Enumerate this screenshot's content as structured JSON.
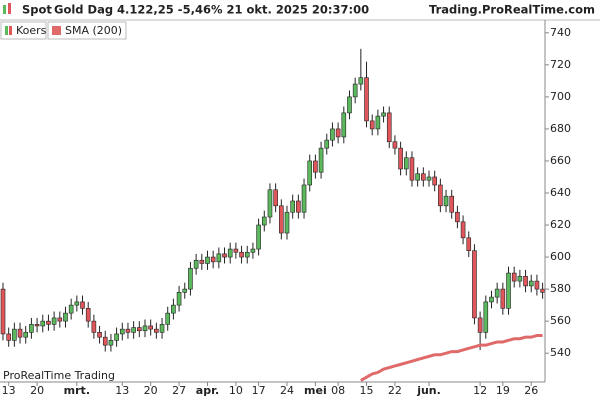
{
  "chart_data": {
    "type": "candlestick",
    "symbol": "Spot",
    "title": "Gold Dag 4.122,25 -5,46% 21 okt. 2025 20:37:00",
    "source": "Trading.ProRealTime.com",
    "watermark": "ProRealTime Trading",
    "categories": [
      null,
      "13",
      null,
      null,
      null,
      null,
      "20",
      null,
      null,
      null,
      null,
      null,
      null,
      "mrt.",
      null,
      null,
      null,
      null,
      null,
      null,
      null,
      "13",
      null,
      null,
      null,
      null,
      "20",
      null,
      null,
      null,
      null,
      "27",
      null,
      null,
      null,
      null,
      "apr.",
      null,
      null,
      null,
      null,
      "10",
      null,
      null,
      null,
      "17",
      null,
      null,
      null,
      null,
      "24",
      null,
      null,
      null,
      null,
      "mei",
      null,
      null,
      null,
      "08",
      null,
      null,
      null,
      null,
      "15",
      null,
      null,
      null,
      null,
      "22",
      null,
      null,
      null,
      null,
      null,
      "jun.",
      null,
      null,
      null,
      null,
      null,
      null,
      null,
      null,
      "12",
      null,
      null,
      null,
      "19",
      null,
      null,
      null,
      null,
      "26",
      null,
      null
    ],
    "series": [
      {
        "name": "Koers",
        "up_color": "#5cb85c",
        "down_color": "#e0575b",
        "open": [
          580,
          552,
          548,
          555,
          550,
          553,
          558,
          557,
          560,
          558,
          562,
          560,
          565,
          570,
          572,
          568,
          560,
          553,
          550,
          545,
          548,
          552,
          555,
          553,
          556,
          554,
          557,
          555,
          553,
          558,
          565,
          570,
          578,
          580,
          593,
          598,
          596,
          600,
          597,
          602,
          600,
          605,
          603,
          600,
          603,
          605,
          620,
          625,
          642,
          632,
          615,
          628,
          635,
          628,
          645,
          660,
          653,
          668,
          673,
          680,
          675,
          690,
          700,
          708,
          712,
          685,
          680,
          688,
          690,
          672,
          668,
          655,
          662,
          648,
          652,
          648,
          650,
          645,
          632,
          638,
          628,
          622,
          612,
          604,
          562,
          553,
          572,
          575,
          580,
          568,
          590,
          585,
          588,
          582,
          585,
          580
        ],
        "high": [
          584,
          556,
          559,
          559,
          557,
          562,
          562,
          564,
          564,
          566,
          566,
          569,
          574,
          576,
          576,
          572,
          564,
          557,
          554,
          552,
          556,
          559,
          559,
          560,
          560,
          561,
          561,
          559,
          562,
          569,
          574,
          582,
          584,
          597,
          602,
          602,
          604,
          604,
          606,
          606,
          609,
          609,
          607,
          607,
          609,
          624,
          629,
          646,
          646,
          636,
          632,
          639,
          639,
          649,
          664,
          664,
          672,
          677,
          684,
          684,
          694,
          704,
          712,
          730,
          722,
          689,
          692,
          694,
          694,
          676,
          672,
          666,
          666,
          656,
          656,
          654,
          654,
          649,
          642,
          642,
          632,
          626,
          616,
          608,
          566,
          576,
          579,
          584,
          584,
          594,
          594,
          592,
          592,
          589,
          589,
          584
        ],
        "low": [
          548,
          544,
          544,
          546,
          546,
          549,
          553,
          553,
          554,
          554,
          556,
          556,
          561,
          566,
          564,
          556,
          549,
          546,
          541,
          541,
          544,
          548,
          549,
          549,
          550,
          550,
          551,
          549,
          549,
          554,
          561,
          566,
          574,
          576,
          589,
          592,
          592,
          593,
          593,
          596,
          596,
          599,
          596,
          596,
          599,
          601,
          616,
          621,
          628,
          611,
          611,
          624,
          624,
          624,
          641,
          649,
          649,
          664,
          669,
          671,
          671,
          686,
          696,
          704,
          681,
          676,
          676,
          684,
          668,
          664,
          651,
          651,
          644,
          644,
          644,
          644,
          641,
          628,
          628,
          624,
          618,
          608,
          600,
          558,
          542,
          549,
          568,
          571,
          564,
          564,
          581,
          581,
          578,
          578,
          576,
          574
        ],
        "close": [
          552,
          548,
          555,
          550,
          553,
          558,
          557,
          560,
          558,
          562,
          560,
          565,
          570,
          572,
          568,
          560,
          553,
          550,
          545,
          548,
          552,
          555,
          553,
          556,
          554,
          557,
          555,
          553,
          558,
          565,
          570,
          578,
          580,
          593,
          598,
          596,
          600,
          597,
          602,
          600,
          605,
          603,
          600,
          603,
          605,
          620,
          625,
          642,
          632,
          615,
          628,
          635,
          628,
          645,
          660,
          653,
          668,
          673,
          680,
          675,
          690,
          700,
          708,
          712,
          685,
          680,
          688,
          690,
          672,
          668,
          655,
          662,
          648,
          652,
          648,
          650,
          645,
          632,
          638,
          628,
          622,
          612,
          604,
          562,
          553,
          572,
          575,
          580,
          568,
          590,
          585,
          588,
          582,
          585,
          580,
          578
        ]
      },
      {
        "name": "SMA (200)",
        "color": "#e06a6a",
        "values": [
          null,
          null,
          null,
          null,
          null,
          null,
          null,
          null,
          null,
          null,
          null,
          null,
          null,
          null,
          null,
          null,
          null,
          null,
          null,
          null,
          null,
          null,
          null,
          null,
          null,
          null,
          null,
          null,
          null,
          null,
          null,
          null,
          null,
          null,
          null,
          null,
          null,
          null,
          null,
          null,
          null,
          null,
          null,
          null,
          null,
          null,
          null,
          null,
          null,
          null,
          null,
          null,
          null,
          null,
          null,
          null,
          null,
          null,
          null,
          null,
          null,
          null,
          null,
          523,
          525,
          527,
          528,
          530,
          531,
          532,
          533,
          534,
          535,
          536,
          537,
          538,
          539,
          539,
          540,
          541,
          541,
          542,
          543,
          544,
          545,
          545,
          546,
          547,
          547,
          548,
          549,
          549,
          550,
          550,
          551,
          551
        ]
      }
    ],
    "ylim": [
      522,
      748
    ],
    "yticks": [
      540,
      560,
      580,
      600,
      620,
      640,
      660,
      680,
      700,
      720,
      740
    ]
  }
}
